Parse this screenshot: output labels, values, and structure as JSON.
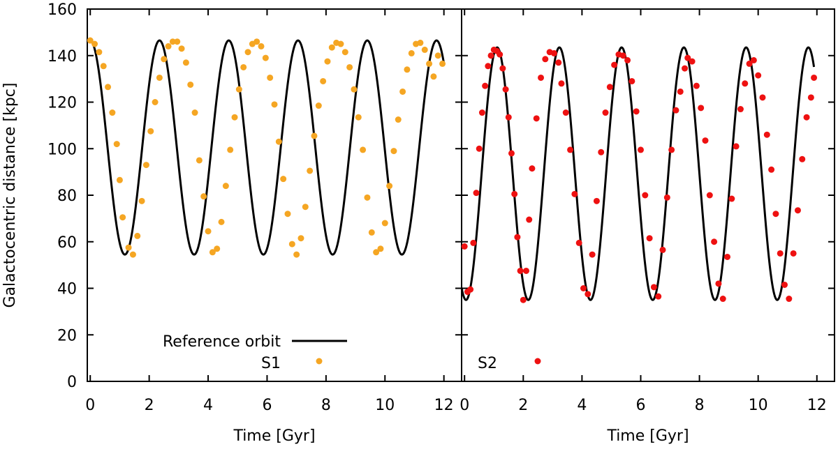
{
  "chart_data": {
    "type": "line",
    "ylabel": "Galactocentric distance [kpc]",
    "ylim": [
      0,
      160
    ],
    "yticks": [
      0,
      20,
      40,
      60,
      80,
      100,
      120,
      140,
      160
    ],
    "yticklabels": [
      "0",
      "20",
      "40",
      "60",
      "80",
      "100",
      "120",
      "140",
      "160"
    ],
    "legend_line_label": "Reference orbit",
    "panels": [
      {
        "id": "left",
        "xlabel": "Time [Gyr]",
        "xlim": [
          -0.1,
          12.6
        ],
        "xticks": [
          0,
          2,
          4,
          6,
          8,
          10,
          12
        ],
        "xticklabels": [
          "0",
          "2",
          "4",
          "6",
          "8",
          "10",
          "12"
        ],
        "reference_orbit": {
          "r_min": 54.5,
          "r_max": 146.5,
          "period": 2.35,
          "t_start": 0.0,
          "t_end": 12.0,
          "start_phase": "pericenter_offset"
        },
        "series": {
          "name": "S1",
          "color": "#f5a623",
          "x": [
            0.0,
            0.15,
            0.3,
            0.45,
            0.6,
            0.75,
            0.9,
            1.0,
            1.1,
            1.3,
            1.45,
            1.6,
            1.75,
            1.9,
            2.05,
            2.2,
            2.35,
            2.5,
            2.65,
            2.8,
            2.95,
            3.1,
            3.25,
            3.4,
            3.55,
            3.7,
            3.85,
            4.0,
            4.15,
            4.3,
            4.45,
            4.6,
            4.75,
            4.9,
            5.05,
            5.2,
            5.35,
            5.5,
            5.65,
            5.8,
            5.95,
            6.1,
            6.25,
            6.4,
            6.55,
            6.7,
            6.85,
            7.0,
            7.15,
            7.3,
            7.45,
            7.6,
            7.75,
            7.9,
            8.05,
            8.2,
            8.35,
            8.5,
            8.65,
            8.8,
            8.95,
            9.1,
            9.25,
            9.4,
            9.55,
            9.7,
            9.85,
            10.0,
            10.15,
            10.3,
            10.45,
            10.6,
            10.75,
            10.9,
            11.05,
            11.2,
            11.35,
            11.5,
            11.65,
            11.8,
            11.95
          ],
          "y": [
            146.5,
            145.0,
            141.5,
            135.5,
            126.5,
            115.5,
            102.0,
            86.5,
            70.5,
            57.5,
            54.5,
            62.5,
            77.5,
            93.0,
            107.5,
            120.0,
            130.5,
            138.5,
            144.0,
            146.0,
            146.0,
            143.0,
            137.0,
            127.5,
            115.5,
            95.0,
            79.5,
            64.5,
            55.5,
            57.0,
            68.5,
            84.0,
            99.5,
            113.5,
            125.5,
            135.0,
            141.5,
            145.0,
            146.0,
            144.0,
            139.0,
            130.5,
            119.0,
            103.0,
            87.0,
            72.0,
            59.0,
            54.5,
            61.5,
            75.0,
            90.5,
            105.5,
            118.5,
            129.0,
            137.5,
            143.5,
            145.5,
            145.0,
            141.5,
            135.0,
            125.5,
            113.5,
            99.5,
            79.0,
            64.0,
            55.5,
            57.0,
            68.0,
            84.0,
            99.0,
            112.5,
            124.5,
            134.0,
            141.0,
            145.0,
            145.5,
            142.5,
            136.5,
            131.0,
            140.0,
            136.5
          ]
        },
        "legend": [
          {
            "label": "Reference orbit",
            "kind": "line"
          },
          {
            "label": "S1",
            "kind": "marker",
            "color": "#f5a623"
          }
        ]
      },
      {
        "id": "right",
        "xlabel": "Time [Gyr]",
        "xlim": [
          -0.1,
          12.6
        ],
        "xticks": [
          0,
          2,
          4,
          6,
          8,
          10,
          12
        ],
        "xticklabels": [
          "0",
          "2",
          "4",
          "6",
          "8",
          "10",
          "12"
        ],
        "reference_orbit": {
          "r_min": 35.0,
          "r_max": 143.5,
          "period": 2.12,
          "t_start": -0.1,
          "t_end": 11.9
        },
        "series": {
          "name": "S2",
          "color": "#ee1111",
          "x": [
            0.0,
            0.1,
            0.2,
            0.3,
            0.4,
            0.5,
            0.6,
            0.7,
            0.8,
            0.9,
            1.0,
            1.1,
            1.2,
            1.3,
            1.4,
            1.5,
            1.6,
            1.7,
            1.8,
            1.9,
            2.0,
            2.1,
            2.2,
            2.3,
            2.45,
            2.6,
            2.75,
            2.9,
            3.05,
            3.2,
            3.3,
            3.45,
            3.6,
            3.75,
            3.9,
            4.05,
            4.2,
            4.35,
            4.5,
            4.65,
            4.8,
            4.95,
            5.1,
            5.25,
            5.4,
            5.55,
            5.7,
            5.85,
            6.0,
            6.15,
            6.3,
            6.45,
            6.6,
            6.75,
            6.9,
            7.05,
            7.2,
            7.35,
            7.5,
            7.6,
            7.75,
            7.9,
            8.05,
            8.2,
            8.35,
            8.5,
            8.65,
            8.8,
            8.95,
            9.1,
            9.25,
            9.4,
            9.55,
            9.7,
            9.85,
            10.0,
            10.15,
            10.3,
            10.45,
            10.6,
            10.75,
            10.9,
            11.05,
            11.2,
            11.35,
            11.5,
            11.65,
            11.8,
            11.9
          ],
          "y": [
            58.0,
            38.5,
            39.5,
            59.5,
            81.0,
            100.0,
            115.5,
            127.0,
            135.5,
            140.0,
            142.5,
            142.0,
            140.5,
            134.5,
            125.5,
            113.5,
            98.0,
            80.5,
            62.0,
            47.5,
            35.0,
            47.5,
            69.5,
            91.5,
            113.0,
            130.5,
            138.5,
            141.5,
            141.0,
            137.0,
            128.0,
            115.5,
            99.5,
            80.5,
            59.5,
            40.0,
            37.5,
            54.5,
            77.5,
            98.5,
            115.5,
            126.5,
            136.0,
            140.5,
            140.0,
            138.0,
            129.0,
            116.0,
            99.5,
            80.0,
            61.5,
            40.5,
            36.5,
            56.5,
            79.0,
            99.5,
            116.5,
            124.5,
            134.5,
            139.0,
            137.5,
            127.0,
            117.5,
            103.5,
            80.0,
            60.0,
            42.0,
            35.5,
            53.5,
            78.5,
            101.0,
            117.0,
            128.0,
            136.5,
            138.0,
            131.5,
            122.0,
            106.0,
            91.0,
            72.0,
            55.0,
            41.5,
            35.5,
            55.0,
            73.5,
            95.5,
            113.5,
            122.0,
            130.5
          ]
        },
        "legend": [
          {
            "label": "S2",
            "kind": "marker",
            "color": "#ee1111"
          }
        ]
      }
    ]
  }
}
